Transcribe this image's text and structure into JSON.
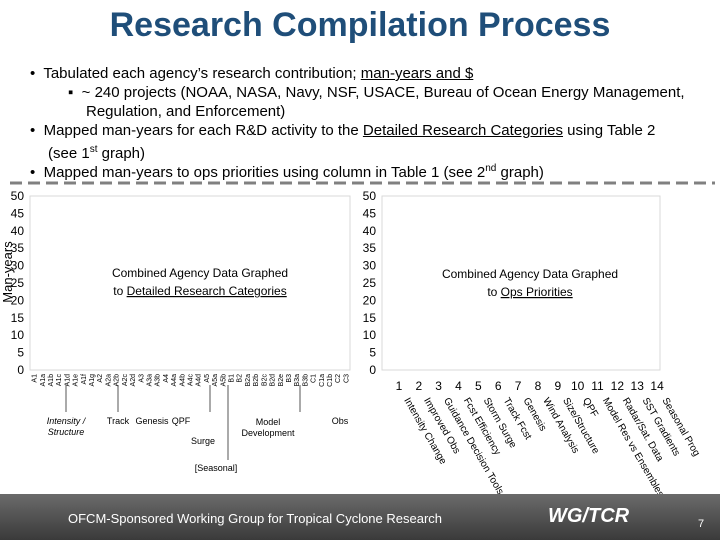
{
  "title": "Research Compilation Process",
  "bullets": [
    {
      "parts": [
        "Tabulated each agency’s research contribution; ",
        "man-years and $"
      ],
      "sub": "~ 240 projects (NOAA, NASA, Navy, NSF, USACE, Bureau of Ocean Energy Management, Regulation, and Enforcement)"
    },
    {
      "parts": [
        "Mapped man-years for each R&D activity to the ",
        "Detailed Research Categories",
        " using Table 2 (see 1",
        "st",
        " graph)"
      ]
    },
    {
      "parts": [
        "Mapped man-years to ops priorities using column in Table 1 (see 2",
        "nd",
        " graph)"
      ]
    }
  ],
  "left_chart": {
    "y_label": "Man-years",
    "yticks": [
      "0",
      "5",
      "10",
      "15",
      "20",
      "25",
      "30",
      "35",
      "40",
      "45",
      "50"
    ],
    "overlay": [
      "Combined Agency Data Graphed",
      "to ",
      "Detailed Research Categories"
    ],
    "codes": [
      "A1",
      "A1a",
      "A1b",
      "A1c",
      "A1d",
      "A1e",
      "A1f",
      "A1g",
      "A2",
      "A2a",
      "A2b",
      "A2c",
      "A2d",
      "A3",
      "A3a",
      "A3b",
      "A4",
      "A4a",
      "A4b",
      "A4c",
      "A4d",
      "A5",
      "A5a",
      "A5b",
      "B1",
      "B2",
      "B2a",
      "B2b",
      "B2c",
      "B2d",
      "B2e",
      "B3",
      "B3a",
      "B3b",
      "C1",
      "C1a",
      "C1b",
      "C2",
      "C3"
    ],
    "groups": [
      "Intensity /",
      "Structure",
      "Track",
      "Genesis",
      "QPF",
      "Surge",
      "Model",
      "Development",
      "Obs",
      "[Seasonal]"
    ]
  },
  "right_chart": {
    "yticks": [
      "0",
      "5",
      "10",
      "15",
      "20",
      "25",
      "30",
      "35",
      "40",
      "45",
      "50"
    ],
    "overlay": [
      "Combined Agency Data Graphed",
      "to ",
      "Ops Priorities"
    ],
    "numbers": [
      "1",
      "2",
      "3",
      "4",
      "5",
      "6",
      "7",
      "8",
      "9",
      "10",
      "11",
      "12",
      "13",
      "14"
    ],
    "priorities": [
      "Intensity Change",
      "Improved Obs",
      "Guidance Decision Tools",
      "Fcst Efficiency",
      "Storm Surge",
      "Track Fcst",
      "Genesis",
      "Wind Analysis",
      "Size/Structure",
      "QPF",
      "Model Res vs Ensembles",
      "Radar/Sat. Data",
      "SST Gradients",
      "Seasonal Prog"
    ]
  },
  "footer": {
    "text": "OFCM-Sponsored Working Group for Tropical Cyclone Research",
    "logo": "WG/TCR",
    "page": "7"
  }
}
